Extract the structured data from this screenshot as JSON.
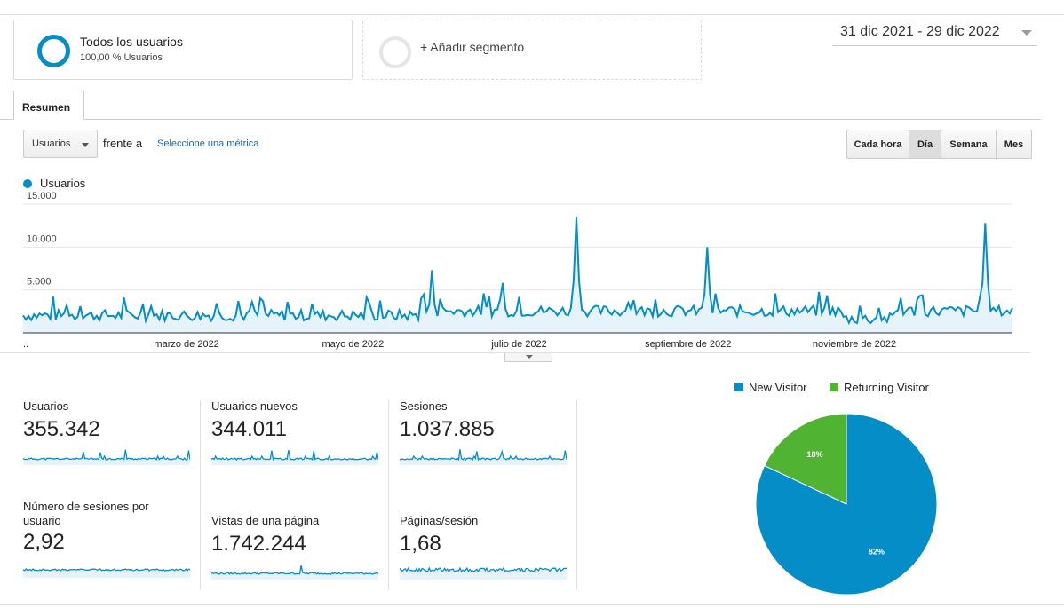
{
  "segments": {
    "all": {
      "title": "Todos los usuarios",
      "subtitle": "100,00 % Usuarios"
    },
    "add": {
      "label": "+ Añadir segmento"
    }
  },
  "date_range": "31 dic 2021 - 29 dic 2022",
  "tabs": [
    {
      "label": "Resumen",
      "active": true
    }
  ],
  "metric_selector": {
    "selected": "Usuarios",
    "versus": "frente a",
    "select_link": "Seleccione una métrica"
  },
  "granularity": [
    {
      "label": "Cada hora",
      "active": false
    },
    {
      "label": "Día",
      "active": true
    },
    {
      "label": "Semana",
      "active": false
    },
    {
      "label": "Mes",
      "active": false
    }
  ],
  "colors": {
    "primary": "#058dc7",
    "returning": "#50b432",
    "fill": "#e6f3fa"
  },
  "chart_data": {
    "type": "area",
    "series": [
      {
        "name": "Usuarios",
        "x_start": "2021-12-31",
        "x_end": "2022-12-29",
        "peaks": [
          {
            "date": "2022-05-30",
            "value": 7300
          },
          {
            "date": "2022-06-25",
            "value": 5800
          },
          {
            "date": "2022-07-22",
            "value": 13500
          },
          {
            "date": "2022-09-08",
            "value": 10000
          },
          {
            "date": "2022-12-19",
            "value": 12800
          }
        ]
      }
    ],
    "yticks": [
      "5.000",
      "10.000",
      "15.000"
    ],
    "ytick_values": [
      5000,
      10000,
      15000
    ],
    "ylim": [
      0,
      15000
    ],
    "xticks": [
      {
        "label": "..",
        "date": "2022-01-01"
      },
      {
        "label": "marzo de 2022",
        "date": "2022-03-01"
      },
      {
        "label": "mayo de 2022",
        "date": "2022-05-01"
      },
      {
        "label": "julio de 2022",
        "date": "2022-07-01"
      },
      {
        "label": "septiembre de 2022",
        "date": "2022-09-01"
      },
      {
        "label": "noviembre de 2022",
        "date": "2022-11-01"
      }
    ],
    "grid": true,
    "legend": "top-left"
  },
  "metrics": [
    {
      "label": "Usuarios",
      "value": "355.342"
    },
    {
      "label": "Usuarios nuevos",
      "value": "344.011"
    },
    {
      "label": "Sesiones",
      "value": "1.037.885"
    },
    {
      "label": "Número de sesiones por usuario",
      "value": "2,92"
    },
    {
      "label": "Vistas de una página",
      "value": "1.742.244"
    },
    {
      "label": "Páginas/sesión",
      "value": "1,68"
    }
  ],
  "pie": {
    "type": "pie",
    "legend": [
      "New Visitor",
      "Returning Visitor"
    ],
    "slices": [
      {
        "name": "New Visitor",
        "value": 82,
        "label": "82%",
        "color": "#058dc7"
      },
      {
        "name": "Returning Visitor",
        "value": 18,
        "label": "18%",
        "color": "#50b432"
      }
    ]
  }
}
